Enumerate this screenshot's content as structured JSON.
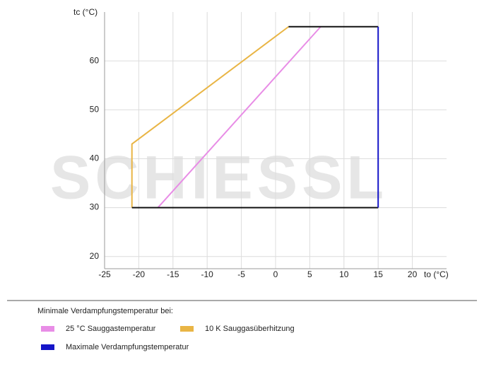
{
  "chart_data": {
    "type": "line",
    "x_label": "to (°C)",
    "y_label": "tc (°C)",
    "watermark": "SCHIESSL",
    "xlim": [
      -25,
      25
    ],
    "xticks": [
      -25,
      -20,
      -15,
      -10,
      -5,
      0,
      5,
      10,
      15,
      20
    ],
    "ylim": [
      17.5,
      70
    ],
    "yticks": [
      20,
      30,
      40,
      50,
      60
    ],
    "grid": true,
    "legend_title": "Minimale Verdampfungstemperatur bei:",
    "series": [
      {
        "name": "25 °C Sauggastemperatur",
        "color": "#e88de6",
        "x": [
          -17.2,
          6.6
        ],
        "values": [
          30,
          67
        ]
      },
      {
        "name": "10 K Sauggasüberhitzung",
        "color": "#e9b545",
        "x": [
          -21,
          -21,
          1.9
        ],
        "values": [
          30,
          43,
          67
        ]
      },
      {
        "color": "#111111",
        "x": [
          -21,
          15,
          null,
          1.9,
          15
        ],
        "values": [
          30,
          30,
          null,
          67,
          67
        ]
      },
      {
        "name": "Maximale Verdampfungstemperatur",
        "color": "#1515c8",
        "x": [
          15,
          15
        ],
        "values": [
          30,
          67
        ]
      }
    ]
  }
}
